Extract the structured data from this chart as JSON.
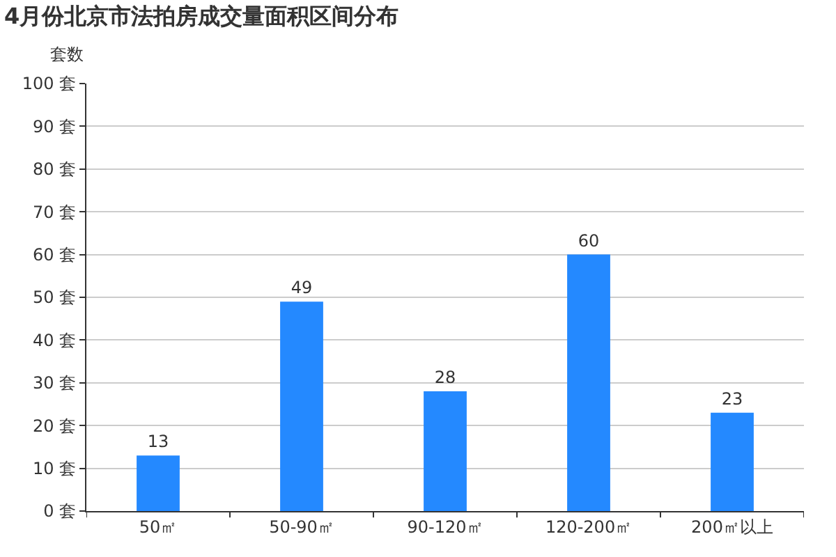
{
  "chart_data": {
    "type": "bar",
    "title": "4月份北京市法拍房成交量面积区间分布",
    "ylabel": "套数",
    "categories": [
      "50㎡",
      "50-90㎡",
      "90-120㎡",
      "120-200㎡",
      "200㎡以上"
    ],
    "values": [
      13,
      49,
      28,
      60,
      23
    ],
    "color": "#2489ff",
    "data_labels": true,
    "ylim": [
      0,
      100
    ],
    "yticks": [
      {
        "value": 0,
        "label": "0 套"
      },
      {
        "value": 10,
        "label": "10 套"
      },
      {
        "value": 20,
        "label": "20 套"
      },
      {
        "value": 30,
        "label": "30 套"
      },
      {
        "value": 40,
        "label": "40 套"
      },
      {
        "value": 50,
        "label": "50 套"
      },
      {
        "value": 60,
        "label": "60 套"
      },
      {
        "value": 70,
        "label": "70 套"
      },
      {
        "value": 80,
        "label": "80 套"
      },
      {
        "value": 90,
        "label": "90 套"
      },
      {
        "value": 100,
        "label": "100 套"
      }
    ],
    "grid": "y",
    "legend": false
  }
}
